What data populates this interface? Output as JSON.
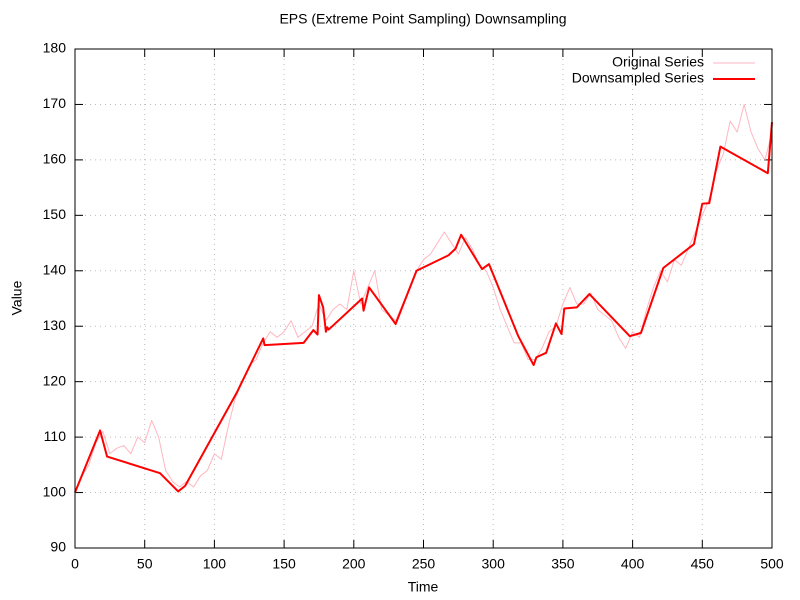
{
  "chart_data": {
    "type": "line",
    "title": "EPS (Extreme Point Sampling) Downsampling",
    "x_label": "Time",
    "y_label": "Value",
    "xlim": [
      0,
      500
    ],
    "xticks": [
      0,
      50,
      100,
      150,
      200,
      250,
      300,
      350,
      400,
      450,
      500
    ],
    "ylim": [
      90,
      180
    ],
    "yticks": [
      90,
      100,
      110,
      120,
      130,
      140,
      150,
      160,
      170,
      180
    ],
    "grid": true,
    "legend": "top-right",
    "series": [
      {
        "name": "Original Series",
        "color": "#ffb6c1",
        "width": 1,
        "x": [
          0,
          5,
          10,
          15,
          20,
          25,
          30,
          35,
          40,
          45,
          50,
          55,
          60,
          65,
          70,
          75,
          80,
          85,
          90,
          95,
          100,
          105,
          110,
          115,
          120,
          125,
          130,
          135,
          140,
          145,
          150,
          155,
          160,
          165,
          170,
          175,
          180,
          185,
          190,
          195,
          200,
          205,
          210,
          215,
          220,
          225,
          230,
          235,
          240,
          245,
          250,
          255,
          260,
          265,
          270,
          275,
          280,
          285,
          290,
          295,
          300,
          305,
          310,
          315,
          320,
          325,
          330,
          335,
          340,
          345,
          350,
          355,
          360,
          365,
          370,
          375,
          380,
          385,
          390,
          395,
          400,
          405,
          410,
          415,
          420,
          425,
          430,
          435,
          440,
          445,
          450,
          455,
          460,
          465,
          470,
          475,
          480,
          485,
          490,
          495,
          500
        ],
        "values": [
          100,
          103,
          105,
          109,
          111,
          107,
          108,
          108.5,
          107,
          110,
          109,
          113,
          110,
          104,
          102,
          101,
          102,
          101,
          103,
          104,
          107,
          106,
          112,
          117,
          120,
          123,
          124,
          127,
          129,
          128,
          129,
          131,
          128,
          129,
          130,
          134,
          131,
          133,
          134,
          133,
          140,
          134,
          137,
          140,
          133,
          132,
          131,
          134,
          137,
          140,
          142,
          143,
          145,
          147,
          145,
          143,
          146,
          144,
          141,
          140,
          137,
          133,
          130,
          127,
          127,
          124,
          124,
          126,
          129,
          130,
          134,
          137,
          134,
          134,
          136,
          133,
          132,
          131,
          128,
          126,
          129,
          128,
          133,
          137,
          140,
          138,
          142,
          141,
          144,
          147,
          150,
          153,
          158,
          161,
          167,
          165,
          170,
          165,
          162,
          160,
          165
        ]
      },
      {
        "name": "Downsampled Series",
        "color": "#ff0000",
        "width": 2,
        "x": [
          0,
          18,
          23,
          61,
          74,
          79,
          116,
          135,
          136,
          164,
          171,
          174,
          175,
          178,
          180,
          181,
          182,
          206,
          207,
          211,
          230,
          245,
          268,
          273,
          277,
          292,
          297,
          318,
          329,
          331,
          338,
          345,
          349,
          351,
          360,
          369,
          398,
          406,
          422,
          444,
          450,
          455,
          463,
          497,
          500
        ],
        "values": [
          100,
          111.2,
          106.5,
          103.5,
          100.2,
          101.2,
          118,
          127.8,
          126.6,
          127,
          129.3,
          128.5,
          135.6,
          133.4,
          129,
          129.8,
          129.4,
          135,
          132.8,
          137,
          130.4,
          140,
          142.8,
          144,
          146.5,
          140.3,
          141.2,
          128.2,
          123,
          124.4,
          125.2,
          130.5,
          128.6,
          133.2,
          133.4,
          135.8,
          128.2,
          128.8,
          140.5,
          144.8,
          152.1,
          152.2,
          162.4,
          157.6,
          166.8
        ]
      }
    ]
  }
}
